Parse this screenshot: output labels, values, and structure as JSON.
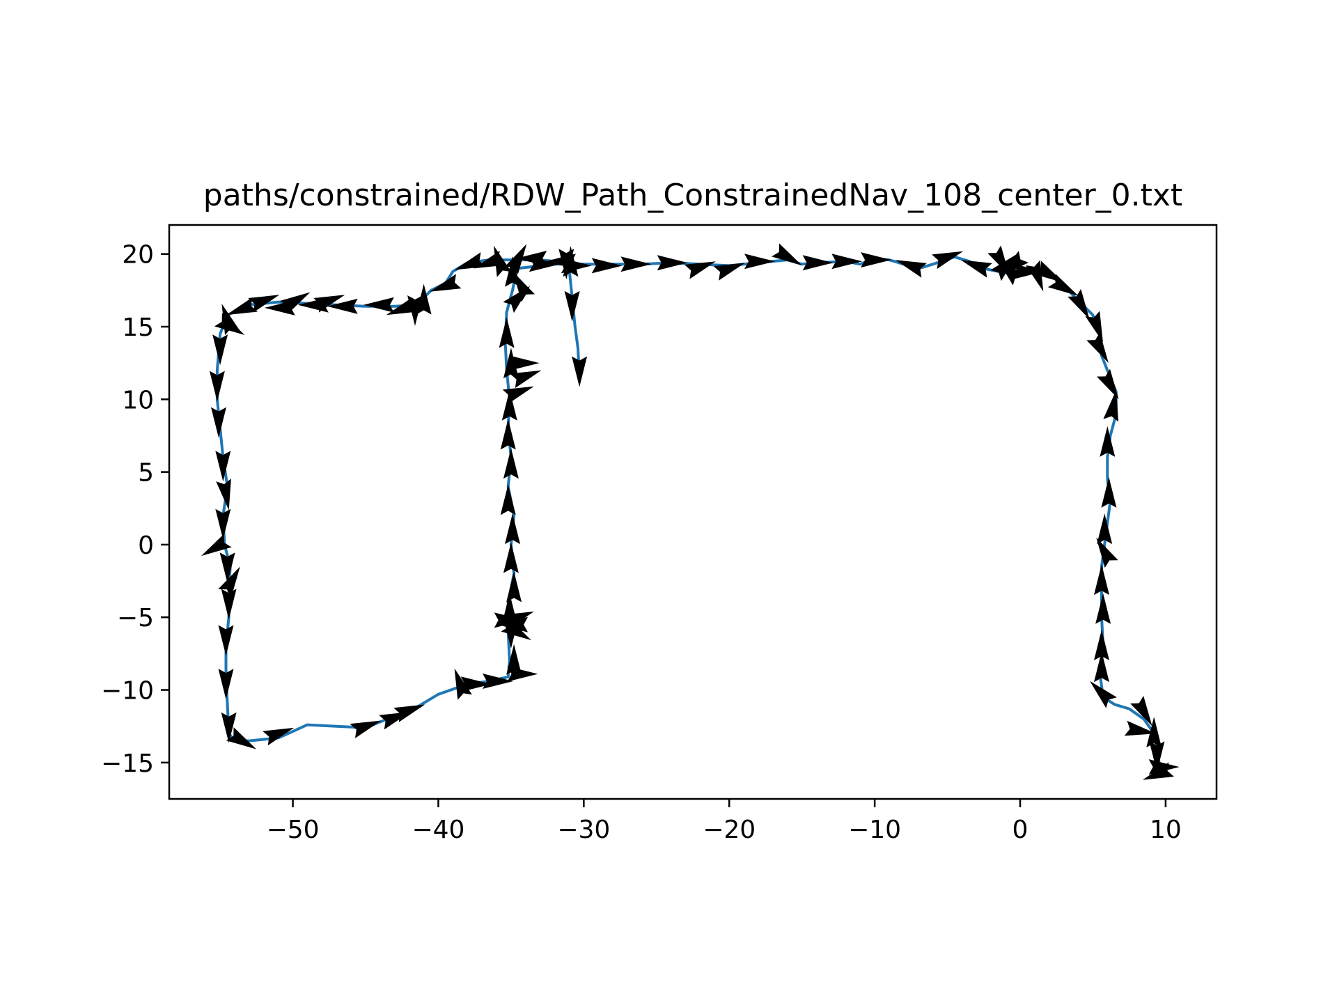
{
  "chart_data": {
    "type": "line",
    "title": "paths/constrained/RDW_Path_ConstrainedNav_108_center_0.txt",
    "xlabel": "",
    "ylabel": "",
    "xlim": [
      -58.5,
      13.5
    ],
    "ylim": [
      -17.5,
      22
    ],
    "grid": false,
    "x_ticks": [
      -50,
      -40,
      -30,
      -20,
      -10,
      0,
      10
    ],
    "x_tick_labels": [
      "−50",
      "−40",
      "−30",
      "−20",
      "−10",
      "0",
      "10"
    ],
    "y_ticks": [
      -15,
      -10,
      -5,
      0,
      5,
      10,
      15,
      20
    ],
    "y_tick_labels": [
      "−15",
      "−10",
      "−5",
      "0",
      "5",
      "10",
      "15",
      "20"
    ],
    "series": [
      {
        "color": "#1f77b4",
        "points": [
          [
            -30.3,
            11.5
          ],
          [
            -30.4,
            13.5
          ],
          [
            -30.6,
            15.0
          ],
          [
            -30.8,
            17.0
          ],
          [
            -31.0,
            19.0
          ],
          [
            -31.0,
            19.4
          ],
          [
            -33.0,
            19.6
          ],
          [
            -35.0,
            19.6
          ],
          [
            -36.5,
            19.6
          ],
          [
            -38.0,
            19.4
          ],
          [
            -39.0,
            18.8
          ],
          [
            -39.5,
            18.0
          ],
          [
            -40.5,
            17.5
          ],
          [
            -41.5,
            16.5
          ],
          [
            -43.0,
            16.4
          ],
          [
            -45.0,
            16.4
          ],
          [
            -47.0,
            16.5
          ],
          [
            -49.0,
            16.6
          ],
          [
            -51.0,
            16.7
          ],
          [
            -53.0,
            16.5
          ],
          [
            -54.5,
            15.8
          ],
          [
            -55.0,
            14.5
          ],
          [
            -55.2,
            12.0
          ],
          [
            -55.2,
            10.0
          ],
          [
            -55.0,
            8.0
          ],
          [
            -54.8,
            6.0
          ],
          [
            -54.5,
            4.0
          ],
          [
            -54.8,
            2.0
          ],
          [
            -54.7,
            0.0
          ],
          [
            -54.3,
            -1.5
          ],
          [
            -54.4,
            -3.0
          ],
          [
            -54.4,
            -5.0
          ],
          [
            -54.6,
            -7.0
          ],
          [
            -54.6,
            -9.0
          ],
          [
            -54.5,
            -11.0
          ],
          [
            -54.4,
            -13.0
          ],
          [
            -54.0,
            -13.5
          ],
          [
            -53.0,
            -13.5
          ],
          [
            -51.0,
            -13.3
          ],
          [
            -49.0,
            -12.4
          ],
          [
            -47.0,
            -12.5
          ],
          [
            -45.0,
            -12.6
          ],
          [
            -43.5,
            -12.0
          ],
          [
            -42.0,
            -11.5
          ],
          [
            -40.0,
            -10.3
          ],
          [
            -38.0,
            -9.6
          ],
          [
            -36.5,
            -9.4
          ],
          [
            -35.2,
            -9.1
          ],
          [
            -35.1,
            -8.0
          ],
          [
            -35.2,
            -6.0
          ],
          [
            -35.2,
            -4.0
          ],
          [
            -34.8,
            -2.0
          ],
          [
            -35.0,
            0.0
          ],
          [
            -34.8,
            2.0
          ],
          [
            -35.2,
            4.0
          ],
          [
            -35.0,
            6.0
          ],
          [
            -35.2,
            8.0
          ],
          [
            -35.1,
            10.0
          ],
          [
            -35.3,
            12.0
          ],
          [
            -35.4,
            14.0
          ],
          [
            -35.3,
            16.0
          ],
          [
            -34.9,
            17.5
          ],
          [
            -34.8,
            18.0
          ],
          [
            -34.7,
            19.0
          ],
          [
            -32.0,
            19.3
          ],
          [
            -30.0,
            19.3
          ],
          [
            -28.0,
            19.3
          ],
          [
            -26.0,
            19.3
          ],
          [
            -24.0,
            19.4
          ],
          [
            -22.0,
            19.3
          ],
          [
            -20.0,
            19.2
          ],
          [
            -18.0,
            19.4
          ],
          [
            -16.0,
            19.6
          ],
          [
            -15.0,
            19.3
          ],
          [
            -14.0,
            19.4
          ],
          [
            -12.0,
            19.5
          ],
          [
            -11.0,
            19.3
          ],
          [
            -10.0,
            19.7
          ],
          [
            -9.0,
            19.6
          ],
          [
            -8.0,
            19.3
          ],
          [
            -7.0,
            19.0
          ],
          [
            -6.0,
            19.3
          ],
          [
            -4.5,
            19.8
          ],
          [
            -3.5,
            19.5
          ],
          [
            -2.5,
            19.0
          ],
          [
            -1.5,
            18.8
          ],
          [
            0.0,
            18.9
          ],
          [
            1.0,
            19.0
          ],
          [
            2.0,
            18.6
          ],
          [
            3.0,
            17.8
          ],
          [
            4.0,
            16.8
          ],
          [
            5.0,
            15.8
          ],
          [
            5.5,
            14.5
          ],
          [
            5.6,
            13.0
          ],
          [
            6.0,
            12.0
          ],
          [
            6.6,
            10.5
          ],
          [
            6.6,
            9.0
          ],
          [
            6.2,
            7.5
          ],
          [
            6.0,
            6.0
          ],
          [
            6.0,
            4.5
          ],
          [
            6.2,
            3.0
          ],
          [
            6.0,
            1.5
          ],
          [
            5.8,
            0.0
          ],
          [
            5.6,
            -1.5
          ],
          [
            5.6,
            -3.0
          ],
          [
            5.6,
            -5.0
          ],
          [
            5.7,
            -7.0
          ],
          [
            5.5,
            -9.0
          ],
          [
            5.7,
            -10.5
          ],
          [
            6.5,
            -11.0
          ],
          [
            7.5,
            -11.3
          ],
          [
            8.5,
            -12.0
          ],
          [
            9.2,
            -13.0
          ],
          [
            9.5,
            -14.5
          ],
          [
            9.6,
            -15.5
          ],
          [
            9.8,
            -15.8
          ]
        ]
      }
    ],
    "quiver_arrows": [
      [
        -30.3,
        12.0,
        270
      ],
      [
        -30.8,
        16.5,
        270
      ],
      [
        -30.9,
        19.4,
        90
      ],
      [
        -31.2,
        19.4,
        270
      ],
      [
        -30.6,
        19.2,
        0
      ],
      [
        -31.5,
        19.5,
        180
      ],
      [
        -33.5,
        19.7,
        180
      ],
      [
        -34.5,
        19.7,
        60
      ],
      [
        -35.8,
        19.5,
        110
      ],
      [
        -36.5,
        19.4,
        200
      ],
      [
        -37.8,
        19.3,
        200
      ],
      [
        -39.5,
        17.8,
        200
      ],
      [
        -41.0,
        16.8,
        90
      ],
      [
        -41.6,
        16.2,
        270
      ],
      [
        -42.5,
        16.2,
        200
      ],
      [
        -44.0,
        16.5,
        180
      ],
      [
        -46.5,
        16.4,
        180
      ],
      [
        -47.5,
        16.8,
        20
      ],
      [
        -48.5,
        16.5,
        180
      ],
      [
        -49.8,
        16.8,
        30
      ],
      [
        -50.8,
        16.3,
        180
      ],
      [
        -52.0,
        16.8,
        20
      ],
      [
        -53.5,
        16.2,
        200
      ],
      [
        -54.5,
        15.5,
        110
      ],
      [
        -54.3,
        15.0,
        330
      ],
      [
        -55.0,
        13.5,
        270
      ],
      [
        -55.2,
        11.0,
        270
      ],
      [
        -55.1,
        8.5,
        270
      ],
      [
        -54.8,
        5.5,
        270
      ],
      [
        -54.6,
        3.5,
        280
      ],
      [
        -54.8,
        1.5,
        270
      ],
      [
        -55.3,
        -0.2,
        210
      ],
      [
        -54.5,
        -1.5,
        270
      ],
      [
        -54.2,
        -2.5,
        60
      ],
      [
        -54.4,
        -4.0,
        270
      ],
      [
        -54.6,
        -6.5,
        270
      ],
      [
        -54.6,
        -9.5,
        270
      ],
      [
        -54.4,
        -12.5,
        270
      ],
      [
        -53.5,
        -13.5,
        330
      ],
      [
        -51.0,
        -13.0,
        20
      ],
      [
        -45.0,
        -12.5,
        20
      ],
      [
        -43.0,
        -11.9,
        20
      ],
      [
        -42.0,
        -11.4,
        20
      ],
      [
        -38.5,
        -9.6,
        110
      ],
      [
        -37.5,
        -9.6,
        0
      ],
      [
        -36.0,
        -9.4,
        0
      ],
      [
        -34.3,
        -8.9,
        0
      ],
      [
        -34.8,
        -8.0,
        90
      ],
      [
        -35.0,
        -6.0,
        270
      ],
      [
        -35.2,
        -5.2,
        0
      ],
      [
        -34.8,
        -5.5,
        180
      ],
      [
        -35.1,
        -4.5,
        90
      ],
      [
        -34.5,
        -5.0,
        20
      ],
      [
        -34.6,
        -6.0,
        330
      ],
      [
        -34.8,
        -3.0,
        90
      ],
      [
        -35.0,
        -1.0,
        90
      ],
      [
        -34.9,
        1.0,
        90
      ],
      [
        -35.2,
        3.0,
        90
      ],
      [
        -35.0,
        5.5,
        90
      ],
      [
        -35.2,
        7.5,
        90
      ],
      [
        -35.1,
        9.5,
        90
      ],
      [
        -34.5,
        10.5,
        20
      ],
      [
        -34.0,
        11.6,
        20
      ],
      [
        -34.2,
        12.5,
        0
      ],
      [
        -35.0,
        12.4,
        90
      ],
      [
        -35.3,
        14.5,
        90
      ],
      [
        -34.5,
        17.0,
        45
      ],
      [
        -34.3,
        17.8,
        120
      ],
      [
        -34.9,
        18.7,
        90
      ],
      [
        -32.8,
        19.3,
        0
      ],
      [
        -28.5,
        19.2,
        0
      ],
      [
        -26.5,
        19.3,
        0
      ],
      [
        -24.0,
        19.4,
        0
      ],
      [
        -22.0,
        19.1,
        20
      ],
      [
        -20.0,
        19.0,
        20
      ],
      [
        -18.0,
        19.5,
        0
      ],
      [
        -16.0,
        19.8,
        330
      ],
      [
        -14.0,
        19.4,
        0
      ],
      [
        -12.0,
        19.5,
        0
      ],
      [
        -10.0,
        19.6,
        0
      ],
      [
        -7.5,
        19.2,
        160
      ],
      [
        -5.0,
        19.8,
        20
      ],
      [
        -3.0,
        19.2,
        160
      ],
      [
        -1.0,
        19.2,
        45
      ],
      [
        -0.8,
        18.9,
        135
      ],
      [
        -1.3,
        19.5,
        300
      ],
      [
        -0.5,
        19.2,
        220
      ],
      [
        0.5,
        18.8,
        0
      ],
      [
        1.2,
        18.5,
        290
      ],
      [
        2.0,
        18.6,
        330
      ],
      [
        3.0,
        17.7,
        330
      ],
      [
        4.2,
        16.5,
        300
      ],
      [
        5.3,
        15.0,
        290
      ],
      [
        5.5,
        13.5,
        300
      ],
      [
        6.2,
        11.0,
        300
      ],
      [
        6.4,
        9.5,
        80
      ],
      [
        6.0,
        7.0,
        90
      ],
      [
        6.1,
        3.5,
        90
      ],
      [
        5.8,
        1.0,
        90
      ],
      [
        5.8,
        -0.5,
        120
      ],
      [
        5.6,
        -2.5,
        90
      ],
      [
        5.7,
        -4.5,
        90
      ],
      [
        5.6,
        -7.0,
        90
      ],
      [
        5.6,
        -8.5,
        90
      ],
      [
        5.6,
        -10.2,
        135
      ],
      [
        8.5,
        -11.5,
        300
      ],
      [
        8.2,
        -12.8,
        350
      ],
      [
        9.2,
        -13.0,
        90
      ],
      [
        9.4,
        -14.5,
        270
      ],
      [
        9.8,
        -15.3,
        0
      ],
      [
        9.5,
        -15.8,
        200
      ]
    ]
  }
}
